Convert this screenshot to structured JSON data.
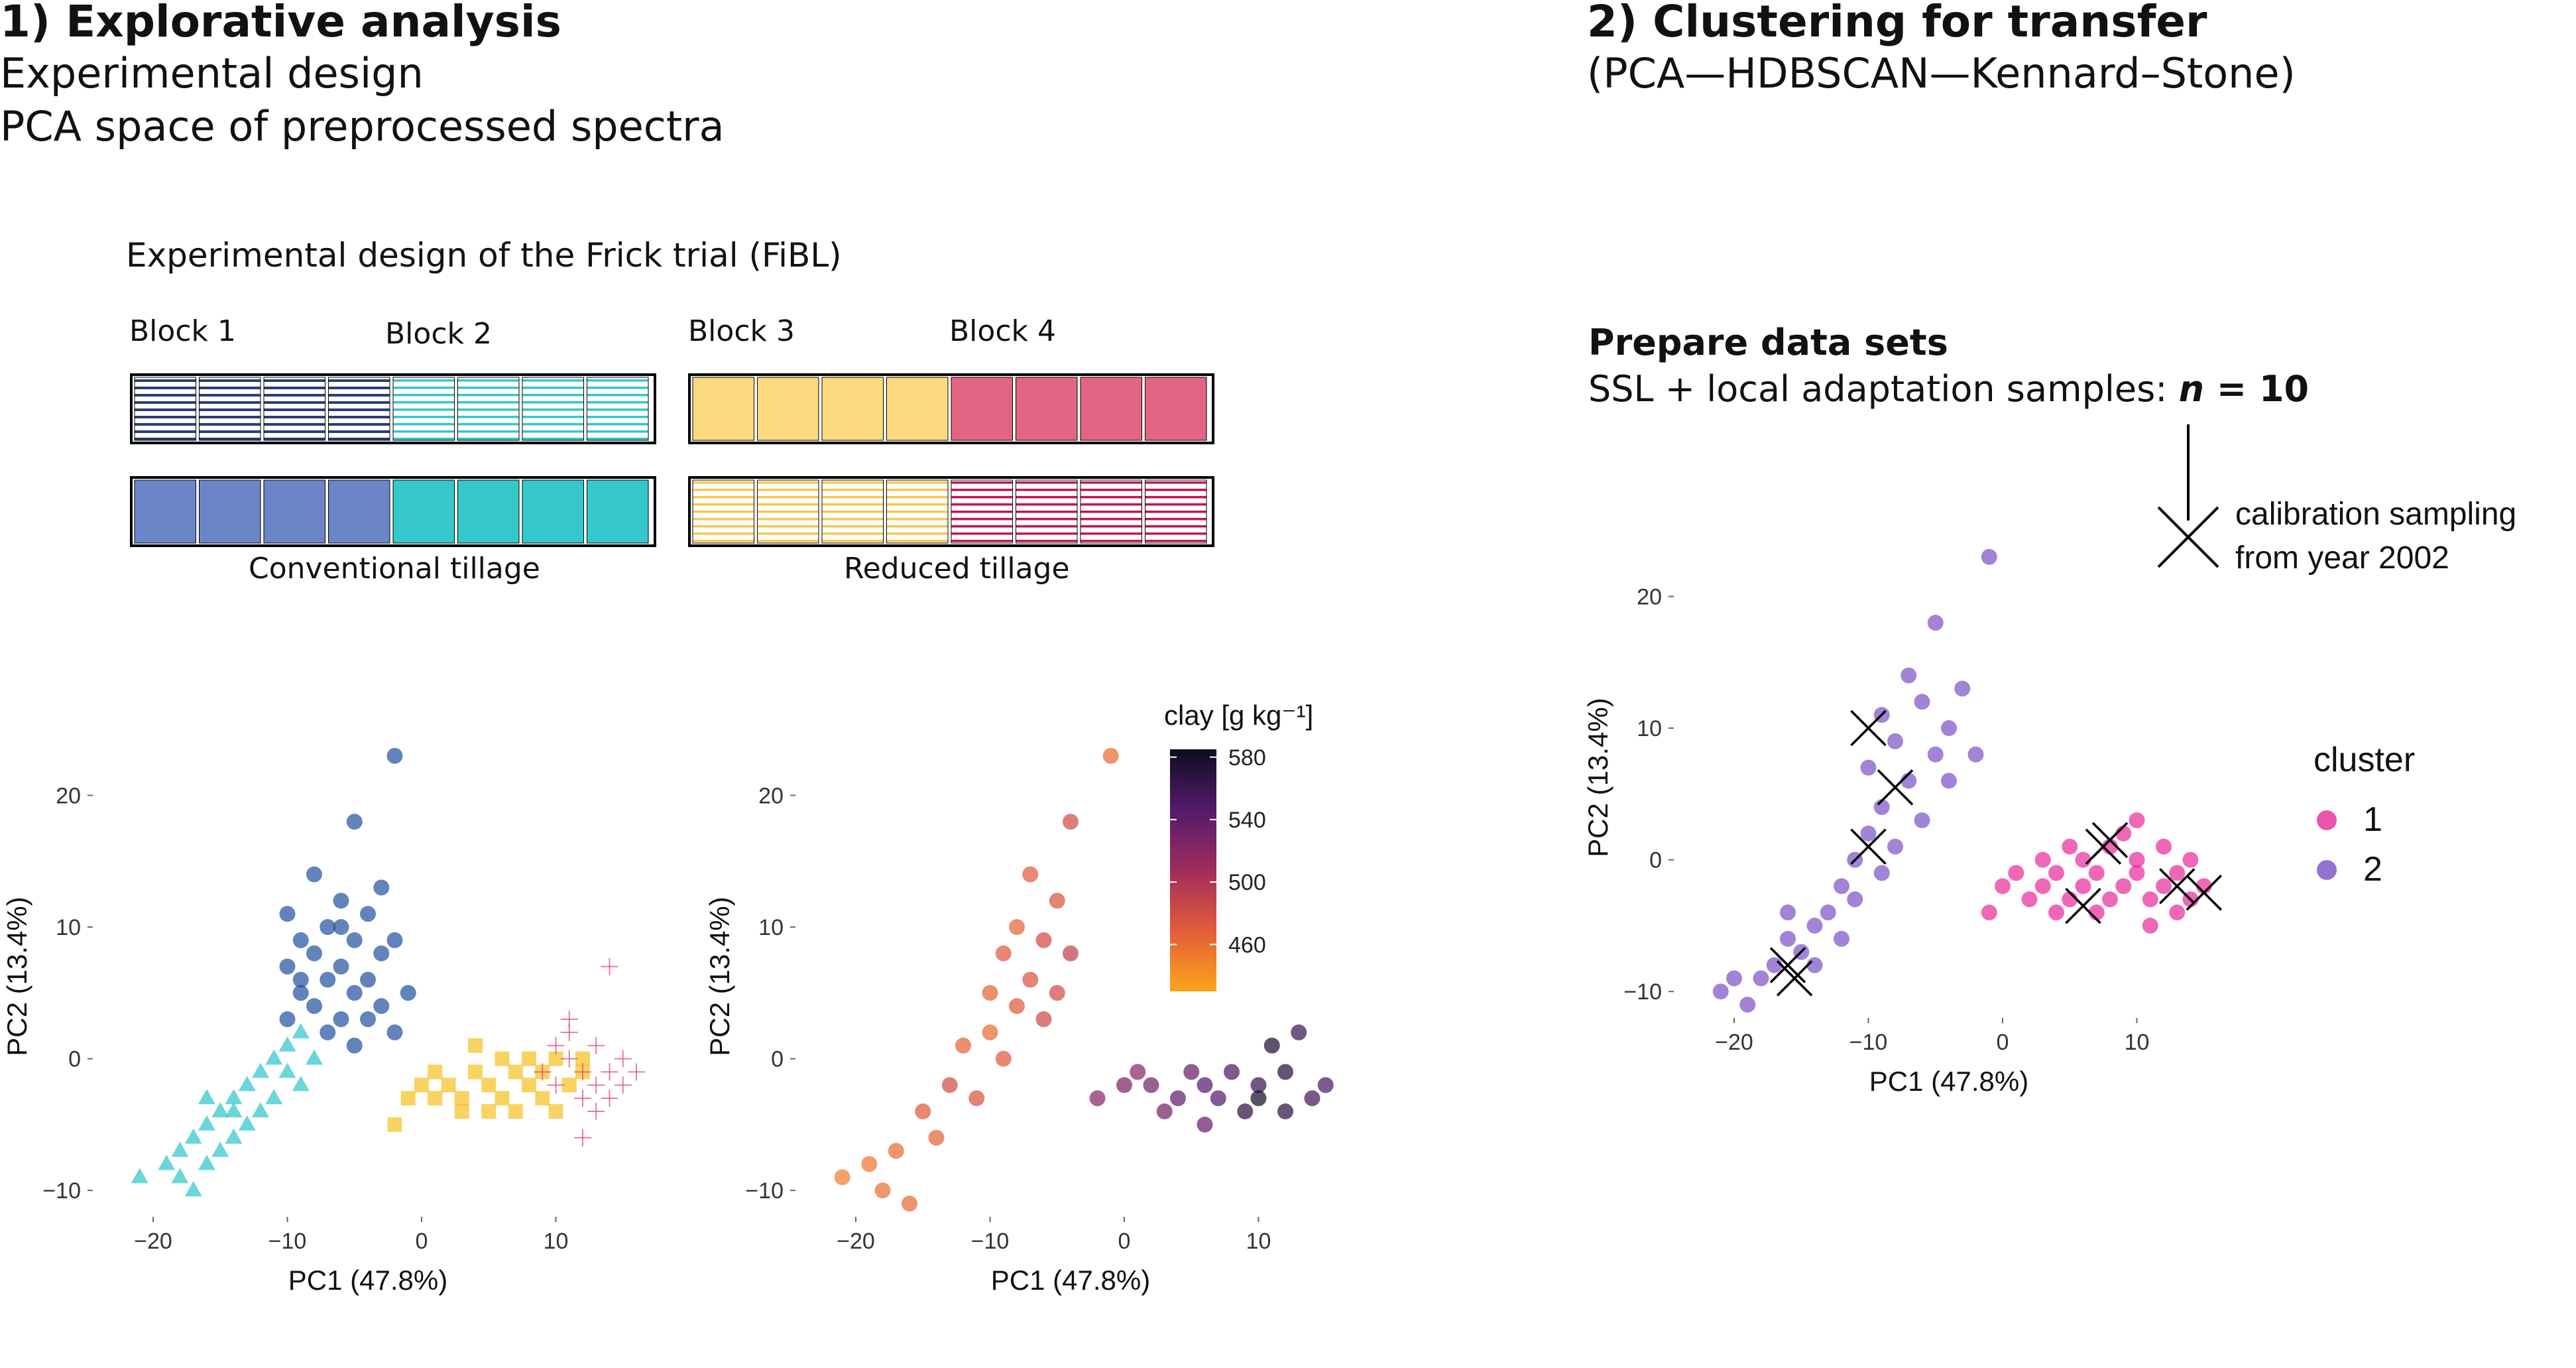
{
  "section1": {
    "title": "1) Explorative analysis",
    "sub1": "Experimental design",
    "sub2": "PCA space of preprocessed spectra"
  },
  "section2": {
    "title": "2) Clustering for transfer",
    "sub": "(PCA—HDBSCAN—Kennard–Stone)"
  },
  "design": {
    "title": "Experimental design of the Frick trial (FiBL)",
    "blocks": [
      "Block 1",
      "Block 2",
      "Block 3",
      "Block 4"
    ],
    "tillage_conv": "Conventional tillage",
    "tillage_red": "Reduced tillage",
    "colors": {
      "block1": "#6b86c8",
      "block1_line": "#2b3f70",
      "block2": "#34c8cc",
      "block3": "#fbd97e",
      "block4": "#e36583",
      "block4_line": "#c6164f"
    }
  },
  "prep": {
    "title": "Prepare data sets",
    "text_prefix": "SSL +  local adaptation samples: ",
    "n_label": "n",
    "n_value": " = 10",
    "annotation_line1": "calibration sampling",
    "annotation_line2": "from year 2002"
  },
  "chart_data": [
    {
      "type": "scatter",
      "xlabel": "PC1 (47.8%)",
      "ylabel": "PC2 (13.4%)",
      "xlim": [
        -24,
        16
      ],
      "ylim": [
        -11.5,
        24
      ],
      "xticks": [
        -20,
        -10,
        0,
        10
      ],
      "yticks": [
        -10,
        0,
        10,
        20
      ],
      "tick_labels_x": [
        "−20",
        "−10",
        "0",
        "10"
      ],
      "tick_labels_y": [
        "−10",
        "0",
        "10",
        "20"
      ],
      "grid": false,
      "series": [
        {
          "color": "#1f4fa0",
          "marker": "circle",
          "points": [
            [
              -2,
              23
            ],
            [
              -5,
              18
            ],
            [
              -8,
              14
            ],
            [
              -3,
              13
            ],
            [
              -6,
              12
            ],
            [
              -10,
              11
            ],
            [
              -7,
              10
            ],
            [
              -4,
              11
            ],
            [
              -9,
              9
            ],
            [
              -5,
              9
            ],
            [
              -2,
              9
            ],
            [
              -8,
              8
            ],
            [
              -6,
              7
            ],
            [
              -3,
              8
            ],
            [
              -10,
              7
            ],
            [
              -7,
              6
            ],
            [
              -4,
              6
            ],
            [
              -9,
              5
            ],
            [
              -5,
              5
            ],
            [
              -1,
              5
            ],
            [
              -8,
              4
            ],
            [
              -6,
              3
            ],
            [
              -3,
              4
            ],
            [
              -10,
              3
            ],
            [
              -7,
              2
            ],
            [
              -2,
              2
            ],
            [
              -5,
              1
            ],
            [
              -9,
              6
            ],
            [
              -6,
              10
            ],
            [
              -4,
              3
            ]
          ]
        },
        {
          "color": "#2bc4cb",
          "marker": "triangle",
          "points": [
            [
              -21,
              -9
            ],
            [
              -19,
              -8
            ],
            [
              -18,
              -7
            ],
            [
              -17,
              -6
            ],
            [
              -16,
              -5
            ],
            [
              -15,
              -4
            ],
            [
              -14,
              -3
            ],
            [
              -13,
              -2
            ],
            [
              -12,
              -1
            ],
            [
              -11,
              0
            ],
            [
              -10,
              1
            ],
            [
              -9,
              2
            ],
            [
              -12,
              -4
            ],
            [
              -14,
              -6
            ],
            [
              -16,
              -8
            ],
            [
              -18,
              -9
            ],
            [
              -17,
              -10
            ],
            [
              -15,
              -7
            ],
            [
              -13,
              -5
            ],
            [
              -11,
              -3
            ],
            [
              -10,
              -1
            ],
            [
              -8,
              0
            ],
            [
              -9,
              -2
            ],
            [
              -14,
              -4
            ],
            [
              -16,
              -3
            ]
          ]
        },
        {
          "color": "#f6c01f",
          "marker": "square",
          "points": [
            [
              -2,
              -5
            ],
            [
              -1,
              -3
            ],
            [
              0,
              -2
            ],
            [
              1,
              -1
            ],
            [
              2,
              -2
            ],
            [
              3,
              -3
            ],
            [
              4,
              -1
            ],
            [
              5,
              -2
            ],
            [
              6,
              -3
            ],
            [
              7,
              -1
            ],
            [
              8,
              -2
            ],
            [
              9,
              -1
            ],
            [
              10,
              0
            ],
            [
              11,
              -2
            ],
            [
              12,
              -1
            ],
            [
              3,
              -4
            ],
            [
              5,
              -4
            ],
            [
              7,
              -4
            ],
            [
              1,
              -3
            ],
            [
              9,
              -3
            ],
            [
              6,
              0
            ],
            [
              8,
              0
            ],
            [
              4,
              1
            ],
            [
              10,
              -4
            ],
            [
              12,
              0
            ]
          ]
        },
        {
          "color": "#e0457e",
          "marker": "plus",
          "points": [
            [
              9,
              -1
            ],
            [
              10,
              -2
            ],
            [
              11,
              0
            ],
            [
              12,
              -1
            ],
            [
              13,
              -2
            ],
            [
              14,
              -1
            ],
            [
              15,
              0
            ],
            [
              12,
              -3
            ],
            [
              14,
              -3
            ],
            [
              11,
              2
            ],
            [
              13,
              1
            ],
            [
              15,
              -2
            ],
            [
              10,
              1
            ],
            [
              16,
              -1
            ],
            [
              13,
              -4
            ],
            [
              14,
              7
            ],
            [
              11,
              3
            ],
            [
              12,
              -6
            ]
          ]
        }
      ]
    },
    {
      "type": "scatter",
      "xlabel": "PC1 (47.8%)",
      "ylabel": "PC2 (13.4%)",
      "xlim": [
        -24,
        16
      ],
      "ylim": [
        -11.5,
        24
      ],
      "xticks": [
        -20,
        -10,
        0,
        10
      ],
      "yticks": [
        -10,
        0,
        10,
        20
      ],
      "tick_labels_x": [
        "−20",
        "−10",
        "0",
        "10"
      ],
      "tick_labels_y": [
        "−10",
        "0",
        "10",
        "20"
      ],
      "grid": false,
      "color_scale": {
        "title": "clay [g kg⁻¹]",
        "min": 430,
        "max": 585,
        "ticks": [
          580,
          540,
          500,
          460
        ],
        "colors": [
          "#fba51a",
          "#e35c3a",
          "#a02c5d",
          "#521b6b",
          "#0e0d1e"
        ]
      },
      "points": [
        [
          -1,
          23,
          460
        ],
        [
          -4,
          18,
          480
        ],
        [
          -7,
          14,
          470
        ],
        [
          -5,
          12,
          475
        ],
        [
          -8,
          10,
          465
        ],
        [
          -6,
          9,
          480
        ],
        [
          -9,
          8,
          470
        ],
        [
          -4,
          8,
          490
        ],
        [
          -7,
          6,
          475
        ],
        [
          -10,
          5,
          465
        ],
        [
          -5,
          5,
          480
        ],
        [
          -8,
          4,
          470
        ],
        [
          -6,
          3,
          485
        ],
        [
          -10,
          2,
          460
        ],
        [
          -12,
          1,
          465
        ],
        [
          -9,
          0,
          470
        ],
        [
          -13,
          -2,
          480
        ],
        [
          -11,
          -3,
          475
        ],
        [
          -15,
          -4,
          470
        ],
        [
          -14,
          -6,
          465
        ],
        [
          -17,
          -7,
          460
        ],
        [
          -19,
          -8,
          455
        ],
        [
          -21,
          -9,
          450
        ],
        [
          -18,
          -10,
          458
        ],
        [
          -16,
          -11,
          462
        ],
        [
          -2,
          -3,
          520
        ],
        [
          0,
          -2,
          525
        ],
        [
          2,
          -2,
          530
        ],
        [
          4,
          -3,
          540
        ],
        [
          6,
          -2,
          545
        ],
        [
          8,
          -1,
          550
        ],
        [
          10,
          -2,
          560
        ],
        [
          12,
          -1,
          570
        ],
        [
          14,
          -3,
          555
        ],
        [
          9,
          -4,
          565
        ],
        [
          7,
          -3,
          545
        ],
        [
          5,
          -1,
          535
        ],
        [
          3,
          -4,
          530
        ],
        [
          11,
          1,
          575
        ],
        [
          13,
          2,
          560
        ],
        [
          15,
          -2,
          550
        ],
        [
          1,
          -1,
          520
        ],
        [
          6,
          -5,
          535
        ],
        [
          10,
          -3,
          580
        ],
        [
          12,
          -4,
          565
        ]
      ]
    },
    {
      "type": "scatter",
      "xlabel": "PC1 (47.8%)",
      "ylabel": "PC2 (13.4%)",
      "xlim": [
        -24,
        16
      ],
      "ylim": [
        -11.5,
        24
      ],
      "xticks": [
        -20,
        -10,
        0,
        10
      ],
      "yticks": [
        -10,
        0,
        10,
        20
      ],
      "tick_labels_x": [
        "−20",
        "−10",
        "0",
        "10"
      ],
      "tick_labels_y": [
        "−10",
        "0",
        "10",
        "20"
      ],
      "grid": false,
      "legend": {
        "title": "cluster",
        "placement": "right"
      },
      "series": [
        {
          "name": "1",
          "color": "#e8289a",
          "points": [
            [
              0,
              -2
            ],
            [
              1,
              -1
            ],
            [
              2,
              -3
            ],
            [
              3,
              -2
            ],
            [
              4,
              -1
            ],
            [
              5,
              -3
            ],
            [
              6,
              -2
            ],
            [
              7,
              -1
            ],
            [
              8,
              -3
            ],
            [
              9,
              -2
            ],
            [
              10,
              -1
            ],
            [
              11,
              -3
            ],
            [
              12,
              -2
            ],
            [
              13,
              -1
            ],
            [
              14,
              -3
            ],
            [
              15,
              -2
            ],
            [
              6,
              0
            ],
            [
              8,
              1
            ],
            [
              10,
              0
            ],
            [
              12,
              1
            ],
            [
              4,
              -4
            ],
            [
              7,
              -4
            ],
            [
              11,
              -5
            ],
            [
              13,
              -4
            ],
            [
              9,
              2
            ],
            [
              3,
              0
            ],
            [
              5,
              1
            ],
            [
              10,
              3
            ],
            [
              -1,
              -4
            ],
            [
              14,
              0
            ]
          ]
        },
        {
          "name": "2",
          "color": "#7c4fc4",
          "points": [
            [
              -1,
              23
            ],
            [
              -5,
              18
            ],
            [
              -7,
              14
            ],
            [
              -3,
              13
            ],
            [
              -6,
              12
            ],
            [
              -9,
              11
            ],
            [
              -4,
              10
            ],
            [
              -8,
              9
            ],
            [
              -5,
              8
            ],
            [
              -2,
              8
            ],
            [
              -10,
              7
            ],
            [
              -7,
              6
            ],
            [
              -4,
              6
            ],
            [
              -9,
              4
            ],
            [
              -6,
              3
            ],
            [
              -10,
              2
            ],
            [
              -8,
              1
            ],
            [
              -11,
              0
            ],
            [
              -9,
              -1
            ],
            [
              -12,
              -2
            ],
            [
              -11,
              -3
            ],
            [
              -13,
              -4
            ],
            [
              -14,
              -5
            ],
            [
              -16,
              -6
            ],
            [
              -15,
              -7
            ],
            [
              -17,
              -8
            ],
            [
              -18,
              -9
            ],
            [
              -20,
              -9
            ],
            [
              -21,
              -10
            ],
            [
              -16,
              -4
            ],
            [
              -12,
              -6
            ],
            [
              -14,
              -8
            ],
            [
              -19,
              -11
            ]
          ]
        }
      ],
      "crosses": [
        [
          -10,
          10
        ],
        [
          -8,
          5.5
        ],
        [
          -10,
          1
        ],
        [
          -16,
          -8
        ],
        [
          -15.5,
          -9
        ],
        [
          8,
          1.5
        ],
        [
          7.5,
          1
        ],
        [
          6,
          -3.5
        ],
        [
          13,
          -2
        ],
        [
          15,
          -2.5
        ]
      ]
    }
  ]
}
